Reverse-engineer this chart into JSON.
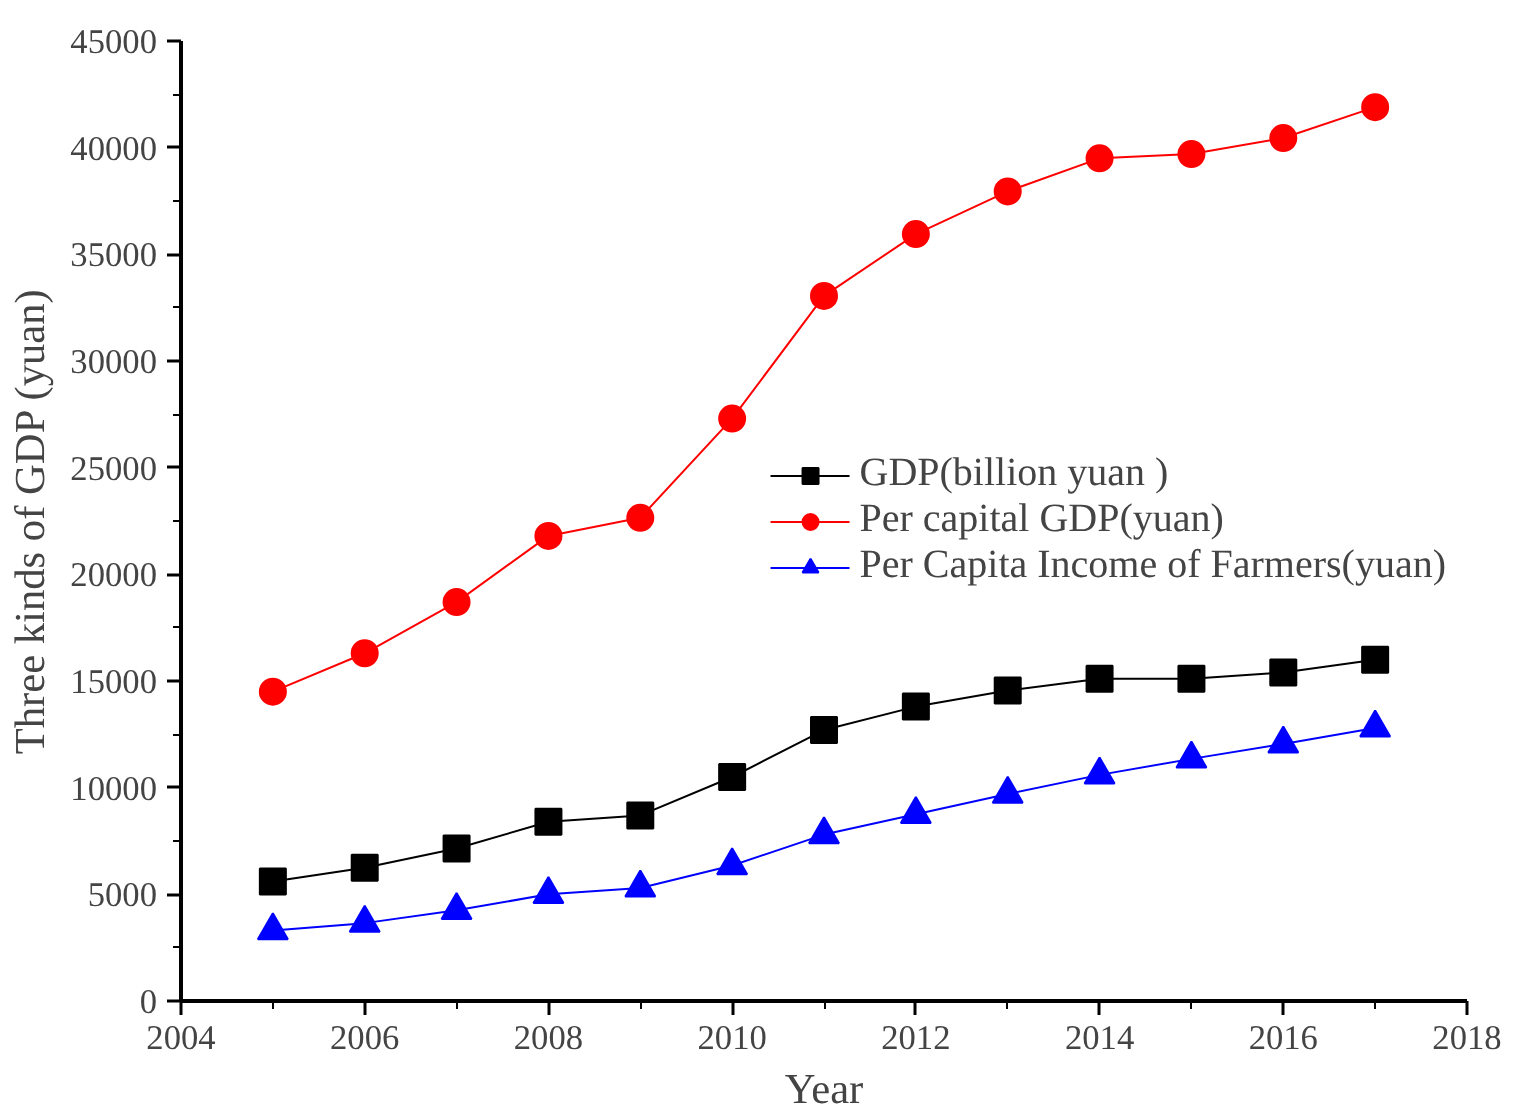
{
  "chart_data": {
    "type": "line",
    "xlabel": "Year",
    "ylabel": "Three kinds of GDP (yuan)",
    "x": [
      2005,
      2006,
      2007,
      2008,
      2009,
      2010,
      2011,
      2012,
      2013,
      2014,
      2015,
      2016,
      2017
    ],
    "series": [
      {
        "name": "GDP(billion yuan )",
        "color": "#000000",
        "marker": "square",
        "values": [
          5600,
          6250,
          7150,
          8400,
          8700,
          10500,
          12700,
          13800,
          14550,
          15100,
          15100,
          15400,
          16000
        ]
      },
      {
        "name": "Per capital GDP(yuan)",
        "color": "#ff0000",
        "marker": "circle",
        "values": [
          14500,
          16300,
          18700,
          21800,
          22650,
          27300,
          33050,
          35950,
          37950,
          39500,
          39700,
          40450,
          41900
        ]
      },
      {
        "name": "Per Capita Income of Farmers(yuan)",
        "color": "#0000ff",
        "marker": "triangle",
        "values": [
          3300,
          3650,
          4250,
          5000,
          5300,
          6350,
          7800,
          8750,
          9700,
          10600,
          11350,
          12050,
          12800
        ]
      }
    ],
    "xlim": [
      2004,
      2018
    ],
    "xticks": [
      2004,
      2006,
      2008,
      2010,
      2012,
      2014,
      2016,
      2018
    ],
    "ylim": [
      0,
      45000
    ],
    "yticks": [
      0,
      5000,
      10000,
      15000,
      20000,
      25000,
      30000,
      35000,
      40000,
      45000
    ],
    "grid": false,
    "legend": "right",
    "line_style": "solid"
  }
}
